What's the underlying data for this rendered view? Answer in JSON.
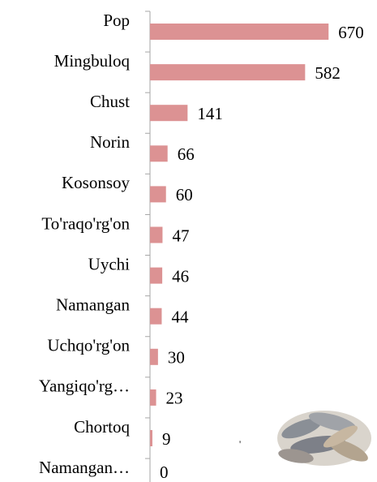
{
  "chart_data": {
    "type": "bar",
    "orientation": "horizontal",
    "categories": [
      "Pop",
      "Mingbuloq",
      "Chust",
      "Norin",
      "Kosonsoy",
      "To'raqo'rg'on",
      "Uychi",
      "Namangan",
      "Uchqo'rg'on",
      "Yangiqo'rg…",
      "Chortoq",
      "Namangan…"
    ],
    "values": [
      670,
      582,
      141,
      66,
      60,
      47,
      46,
      44,
      30,
      23,
      9,
      0
    ],
    "color": "#dc9293",
    "xlim": [
      0,
      800
    ]
  }
}
